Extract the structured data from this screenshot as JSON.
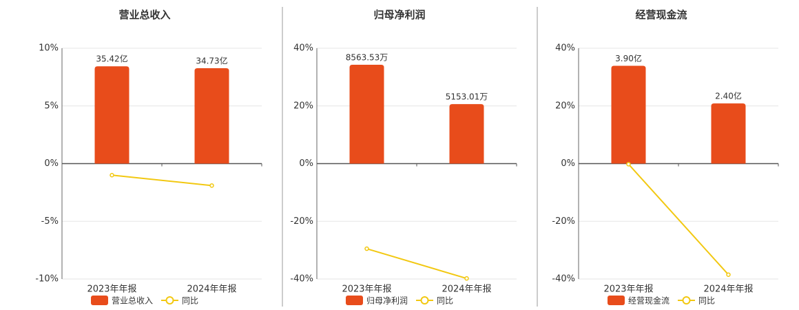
{
  "chart_data": [
    {
      "type": "bar-line",
      "title": "营业总收入",
      "categories": [
        "2023年年报",
        "2024年年报"
      ],
      "series": [
        {
          "name": "营业总收入",
          "type": "bar",
          "color": "#e84c1b",
          "axis": "y2",
          "values": [
            35.42,
            34.73
          ],
          "value_labels": [
            "35.42亿",
            "34.73亿"
          ]
        },
        {
          "name": "同比",
          "type": "line",
          "color": "#f2c811",
          "values": [
            -1.0,
            -1.9
          ]
        }
      ],
      "ylim": [
        -10,
        10
      ],
      "yticks": [
        {
          "value": -10,
          "label": "-10%"
        },
        {
          "value": -5,
          "label": "-5%"
        },
        {
          "value": 0,
          "label": "0%"
        },
        {
          "value": 5,
          "label": "5%"
        },
        {
          "value": 10,
          "label": "10%"
        }
      ],
      "y2lim": [
        -42,
        42
      ],
      "grid": true
    },
    {
      "type": "bar-line",
      "title": "归母净利润",
      "categories": [
        "2023年年报",
        "2024年年报"
      ],
      "series": [
        {
          "name": "归母净利润",
          "type": "bar",
          "color": "#e84c1b",
          "axis": "y2",
          "values": [
            8563.53,
            5153.01
          ],
          "value_labels": [
            "8563.53万",
            "5153.01万"
          ]
        },
        {
          "name": "同比",
          "type": "line",
          "color": "#f2c811",
          "values": [
            -29.5,
            -39.8
          ]
        }
      ],
      "ylim": [
        -40,
        40
      ],
      "yticks": [
        {
          "value": -40,
          "label": "-40%"
        },
        {
          "value": -20,
          "label": "-20%"
        },
        {
          "value": 0,
          "label": "0%"
        },
        {
          "value": 20,
          "label": "20%"
        },
        {
          "value": 40,
          "label": "40%"
        }
      ],
      "y2lim": [
        -10000,
        10000
      ],
      "grid": true
    },
    {
      "type": "bar-line",
      "title": "经营现金流",
      "categories": [
        "2023年年报",
        "2024年年报"
      ],
      "series": [
        {
          "name": "经营现金流",
          "type": "bar",
          "color": "#e84c1b",
          "axis": "y2",
          "values": [
            3.9,
            2.4
          ],
          "value_labels": [
            "3.90亿",
            "2.40亿"
          ]
        },
        {
          "name": "同比",
          "type": "line",
          "color": "#f2c811",
          "values": [
            -0.2,
            -38.5
          ]
        }
      ],
      "ylim": [
        -40,
        40
      ],
      "yticks": [
        {
          "value": -40,
          "label": "-40%"
        },
        {
          "value": -20,
          "label": "-20%"
        },
        {
          "value": 0,
          "label": "0%"
        },
        {
          "value": 20,
          "label": "20%"
        },
        {
          "value": 40,
          "label": "40%"
        }
      ],
      "y2lim": [
        -4.6,
        4.6
      ],
      "grid": true
    }
  ]
}
